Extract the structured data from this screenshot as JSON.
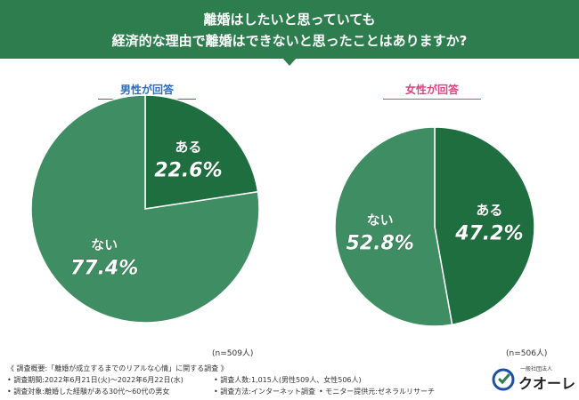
{
  "header": {
    "line1": "離婚はしたいと思っていても",
    "line2": "経済的な理由で離婚はできないと思ったことはありますか?"
  },
  "chart_data": [
    {
      "type": "pie",
      "title": "男性が回答",
      "categories": [
        "ある",
        "ない"
      ],
      "values": [
        22.6,
        77.4
      ],
      "value_labels": [
        "22.6%",
        "77.4%"
      ],
      "n_label": "(n=509人)",
      "colors": [
        "#1e6e40",
        "#3f8d63"
      ]
    },
    {
      "type": "pie",
      "title": "女性が回答",
      "categories": [
        "ある",
        "ない"
      ],
      "values": [
        47.2,
        52.8
      ],
      "value_labels": [
        "47.2%",
        "52.8%"
      ],
      "n_label": "(n=506人)",
      "colors": [
        "#1e6e40",
        "#3f8d63"
      ]
    }
  ],
  "footer": {
    "heading": "《 調査概要:「離婚が成立するまでのリアルな心情」に関する調査 》",
    "period": "• 調査期間:2022年6月21日(火)〜2022年6月22日(水)",
    "count": "• 調査人数:1,015人(男性509人、女性506人)",
    "target": "• 調査対象:離婚した経験がある30代〜60代の男女",
    "method": "• 調査方法:インターネット調査",
    "provider": "• モニター提供元:ゼネラルリサーチ"
  },
  "logo": {
    "small": "一般社団法人",
    "main": "クオーレ"
  },
  "colors": {
    "header": "#2e7d4f",
    "male": "#2e6db4",
    "female": "#d6467f",
    "slice_yes": "#1e6e40",
    "slice_no": "#3f8d63"
  }
}
